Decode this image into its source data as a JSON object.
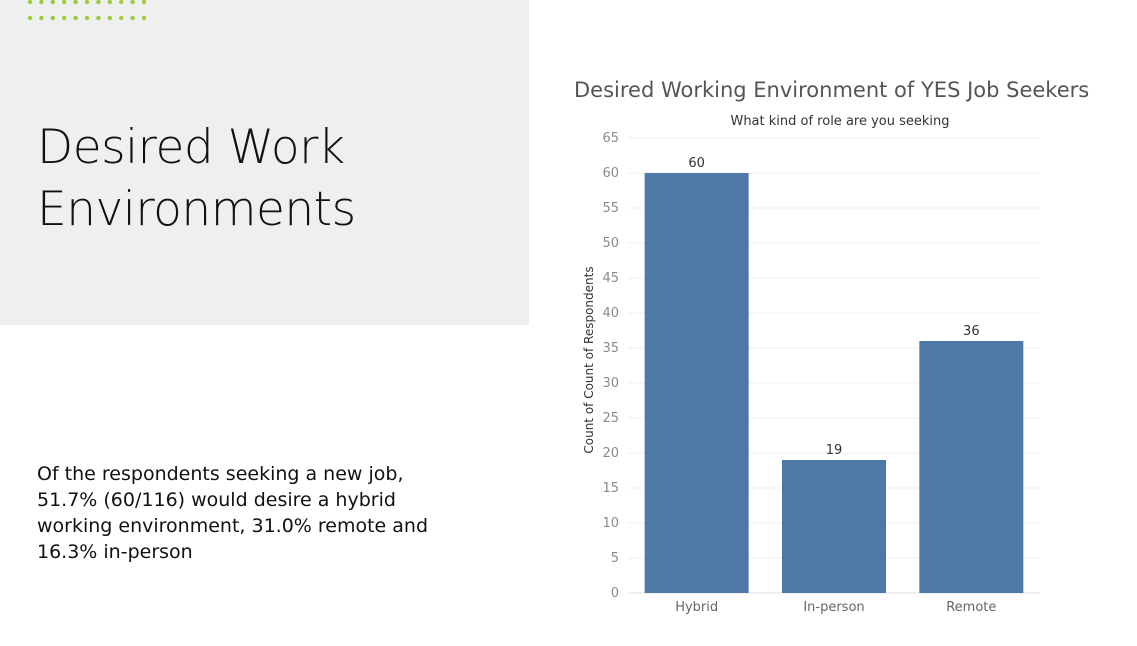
{
  "slide": {
    "title_line1": "Desired Work",
    "title_line2": "Environments",
    "body": "Of the respondents seeking a new job, 51.7% (60/116) would desire a hybrid working environment, 31.0% remote and 16.3% in-person",
    "accent_color": "#9ccb3b",
    "panel_color": "#efefef"
  },
  "chart_data": {
    "type": "bar",
    "title": "Desired Working Environment of YES Job Seekers",
    "subtitle": "What kind of role are you seeking",
    "xlabel": "",
    "ylabel": "Count of Count of Respondents",
    "categories": [
      "Hybrid",
      "In-person",
      "Remote"
    ],
    "values": [
      60,
      19,
      36
    ],
    "data_labels": [
      "60",
      "19",
      "36"
    ],
    "ylim": [
      0,
      65
    ],
    "yticks": [
      0,
      5,
      10,
      15,
      20,
      25,
      30,
      35,
      40,
      45,
      50,
      55,
      60,
      65
    ],
    "grid": true,
    "bar_color": "#4e79a7"
  }
}
